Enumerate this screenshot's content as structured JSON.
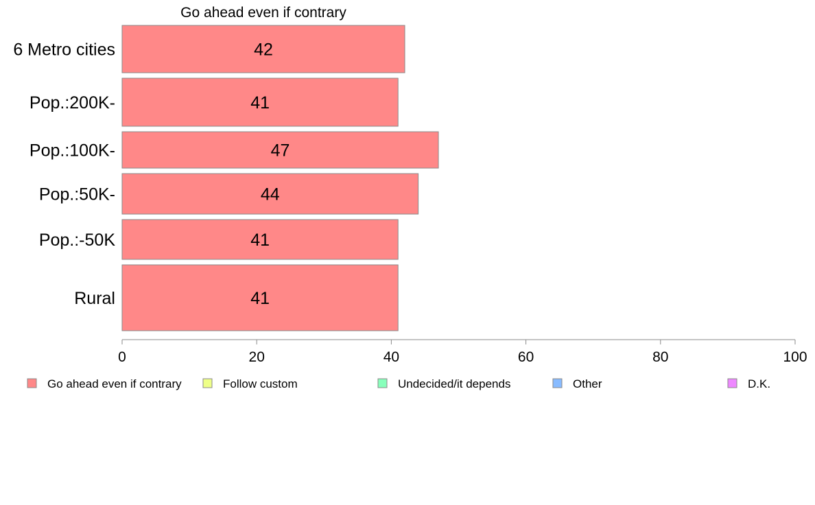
{
  "chart_data": {
    "type": "bar",
    "orientation": "horizontal",
    "title": "Go ahead even if contrary",
    "categories": [
      "6 Metro cities",
      "Pop.:200K-",
      "Pop.:100K-",
      "Pop.:50K-",
      "Pop.:-50K",
      "Rural"
    ],
    "series": [
      {
        "name": "Go ahead even if contrary",
        "values": [
          42,
          41,
          47,
          44,
          41,
          41
        ],
        "color": "#ff8888"
      }
    ],
    "xlim": [
      0,
      100
    ],
    "xticks": [
      0,
      20,
      40,
      60,
      80,
      100
    ],
    "xlabel": "",
    "ylabel": "",
    "grid": false,
    "legend": {
      "position": "bottom",
      "items": [
        {
          "name": "Go ahead even if contrary",
          "color": "#ff8888"
        },
        {
          "name": "Follow custom",
          "color": "#eeff88"
        },
        {
          "name": "Undecided/it depends",
          "color": "#88ffbb"
        },
        {
          "name": "Other",
          "color": "#88bbff"
        },
        {
          "name": "D.K.",
          "color": "#ee88ff"
        }
      ]
    }
  }
}
